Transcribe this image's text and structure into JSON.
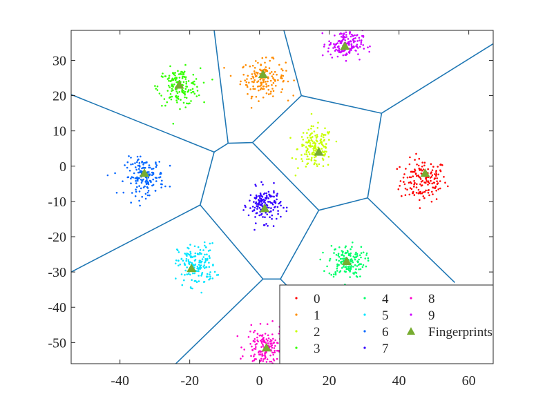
{
  "chart_data": {
    "type": "scatter",
    "title": "",
    "xlabel": "",
    "ylabel": "",
    "xlim": [
      -54,
      67
    ],
    "ylim": [
      -56,
      38.5
    ],
    "xticks": [
      -40,
      -20,
      0,
      20,
      40,
      60
    ],
    "yticks": [
      30,
      20,
      10,
      0,
      -10,
      -20,
      -30,
      -40,
      -50
    ],
    "grid": false,
    "legend_position": "bottom-right",
    "classes": [
      {
        "name": "0",
        "color": "#ff0000",
        "center": [
          47,
          -4
        ],
        "spread": [
          3.3,
          3.0
        ]
      },
      {
        "name": "1",
        "color": "#ff8c00",
        "center": [
          1,
          25
        ],
        "spread": [
          3.2,
          2.5
        ]
      },
      {
        "name": "2",
        "color": "#c8ff00",
        "center": [
          16,
          5
        ],
        "spread": [
          2.5,
          3.0
        ]
      },
      {
        "name": "3",
        "color": "#33ff00",
        "center": [
          -23,
          22.5
        ],
        "spread": [
          3.0,
          2.6
        ]
      },
      {
        "name": "4",
        "color": "#00ff6a",
        "center": [
          25,
          -27
        ],
        "spread": [
          2.6,
          2.3
        ]
      },
      {
        "name": "5",
        "color": "#00e5ff",
        "center": [
          -18,
          -28
        ],
        "spread": [
          2.7,
          3.0
        ]
      },
      {
        "name": "6",
        "color": "#0066ff",
        "center": [
          -33,
          -3
        ],
        "spread": [
          2.8,
          2.6
        ]
      },
      {
        "name": "7",
        "color": "#3300ff",
        "center": [
          1.5,
          -11
        ],
        "spread": [
          2.3,
          2.4
        ]
      },
      {
        "name": "8",
        "color": "#ff00cc",
        "center": [
          1.5,
          -51.5
        ],
        "spread": [
          2.6,
          2.6
        ]
      },
      {
        "name": "9",
        "color": "#cc00ff",
        "center": [
          24.5,
          34.5
        ],
        "spread": [
          2.5,
          2.0
        ]
      }
    ],
    "fingerprints": {
      "name": "Fingerprints",
      "color": "#77ac30",
      "points": [
        [
          47.5,
          -2
        ],
        [
          1,
          26
        ],
        [
          17,
          4
        ],
        [
          -23,
          23
        ],
        [
          25,
          -27
        ],
        [
          -19.5,
          -29
        ],
        [
          -33,
          -2
        ],
        [
          1.5,
          -12
        ],
        [
          2,
          -51.5
        ],
        [
          24.5,
          34
        ]
      ]
    },
    "voronoi_color": "#1f77b4",
    "voronoi_edges": [
      [
        [
          -13,
          4
        ],
        [
          -54,
          20.3
        ]
      ],
      [
        [
          -13,
          4
        ],
        [
          -9,
          6.5
        ]
      ],
      [
        [
          -9,
          6.5
        ],
        [
          -13,
          38.5
        ]
      ],
      [
        [
          -9,
          6.5
        ],
        [
          -2,
          6.7
        ]
      ],
      [
        [
          -2,
          6.7
        ],
        [
          12,
          20
        ]
      ],
      [
        [
          12,
          20
        ],
        [
          7,
          38.5
        ]
      ],
      [
        [
          12,
          20
        ],
        [
          35,
          15
        ]
      ],
      [
        [
          35,
          15
        ],
        [
          67,
          34.7
        ]
      ],
      [
        [
          35,
          15
        ],
        [
          31,
          -9
        ]
      ],
      [
        [
          31,
          -9
        ],
        [
          17,
          -12.5
        ]
      ],
      [
        [
          31,
          -9
        ],
        [
          56,
          -33
        ]
      ],
      [
        [
          17,
          -12.5
        ],
        [
          -2,
          6.7
        ]
      ],
      [
        [
          17,
          -12.5
        ],
        [
          6,
          -32
        ]
      ],
      [
        [
          -13,
          4
        ],
        [
          -17,
          -11
        ]
      ],
      [
        [
          -17,
          -11
        ],
        [
          -54,
          -30
        ]
      ],
      [
        [
          -17,
          -11
        ],
        [
          1,
          -32
        ]
      ],
      [
        [
          1,
          -32
        ],
        [
          6,
          -32
        ]
      ],
      [
        [
          1,
          -32
        ],
        [
          -24,
          -56
        ]
      ],
      [
        [
          6,
          -32
        ],
        [
          13,
          -39
        ]
      ]
    ],
    "legend": {
      "columns": [
        [
          "0",
          "1",
          "2",
          "3"
        ],
        [
          "4",
          "5",
          "6",
          "7"
        ],
        [
          "8",
          "9",
          "Fingerprints"
        ]
      ]
    }
  }
}
